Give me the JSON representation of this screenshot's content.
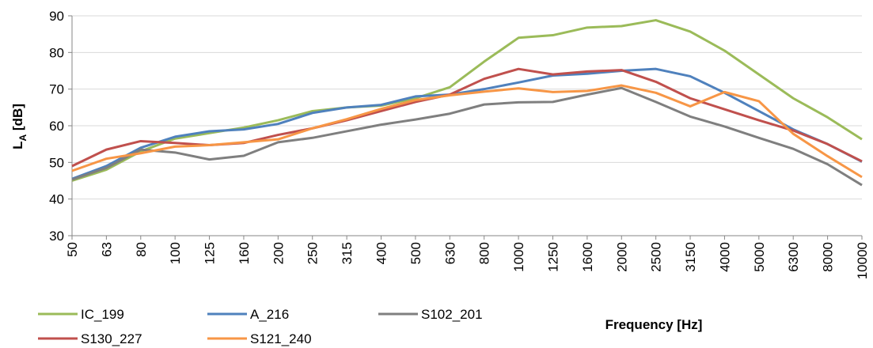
{
  "chart_data": {
    "type": "line",
    "y_label": [
      "L",
      "A",
      " [dB]"
    ],
    "x_label": "Frequency [Hz]",
    "categories": [
      "50",
      "63",
      "80",
      "100",
      "125",
      "160",
      "200",
      "250",
      "315",
      "400",
      "500",
      "630",
      "800",
      "1000",
      "1250",
      "1600",
      "2000",
      "2500",
      "3150",
      "4000",
      "5000",
      "6300",
      "8000",
      "10000"
    ],
    "series": [
      {
        "name": "IC_199",
        "color": "#9bbb59",
        "values": [
          45,
          48,
          53,
          56.5,
          58,
          59.5,
          61.5,
          64,
          65,
          65.5,
          67.5,
          70.5,
          77.5,
          84,
          84.7,
          86.8,
          87.2,
          88.8,
          85.7,
          80.5,
          74,
          67.5,
          62.3,
          56.3
        ]
      },
      {
        "name": "A_216",
        "color": "#4f81bd",
        "values": [
          45.5,
          49,
          54,
          57,
          58.5,
          59,
          60.5,
          63.5,
          65,
          65.7,
          68,
          68.5,
          70,
          71.8,
          73.7,
          74.2,
          75,
          75.5,
          73.5,
          69,
          64,
          59,
          55,
          50.2
        ]
      },
      {
        "name": "S102_201",
        "color": "#7f7f7f",
        "values": [
          45.3,
          48.5,
          53.5,
          52.7,
          50.8,
          51.8,
          55.5,
          56.7,
          58.5,
          60.3,
          61.7,
          63.3,
          65.8,
          66.4,
          66.5,
          68.5,
          70.3,
          66.5,
          62.5,
          59.8,
          56.7,
          53.7,
          49.5,
          43.8
        ]
      },
      {
        "name": "S130_227",
        "color": "#c0504d",
        "values": [
          49,
          53.5,
          55.8,
          55.3,
          54.7,
          55.3,
          57.5,
          59.3,
          61.5,
          64,
          66.5,
          68.5,
          72.8,
          75.5,
          74,
          74.8,
          75.2,
          72,
          67.5,
          64.5,
          61.5,
          58.7,
          55,
          50.3
        ]
      },
      {
        "name": "S121_240",
        "color": "#f79646",
        "values": [
          47.7,
          51,
          52.5,
          54.3,
          54.7,
          55.5,
          56.3,
          59.3,
          61.8,
          64.6,
          67,
          68.3,
          69.3,
          70.2,
          69.2,
          69.5,
          71,
          69,
          65.3,
          69.2,
          66.7,
          57.8,
          51.7,
          46
        ]
      }
    ],
    "ylim": [
      30,
      90
    ],
    "yticks": [
      30,
      40,
      50,
      60,
      70,
      80,
      90
    ],
    "grid": true
  }
}
